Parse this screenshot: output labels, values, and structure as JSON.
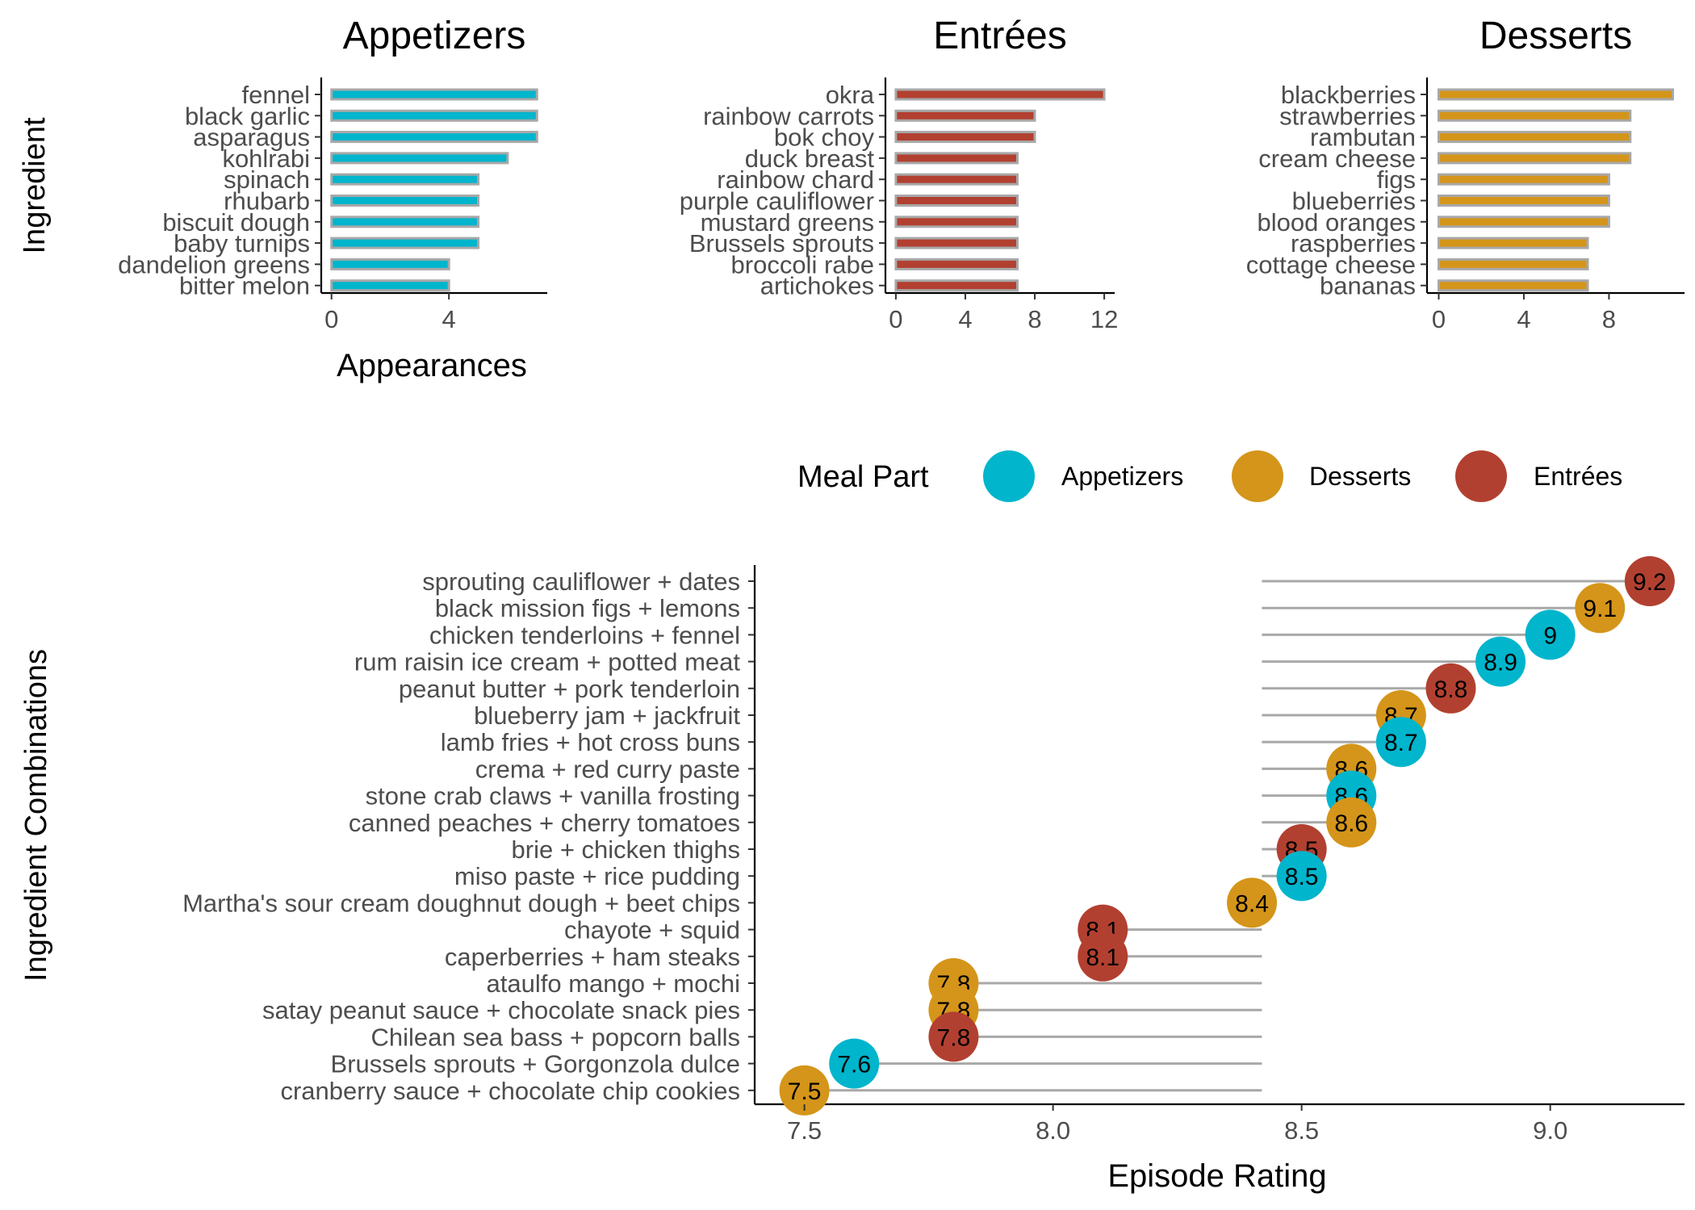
{
  "colors": {
    "Appetizers": "#00B5CC",
    "Desserts": "#D4951A",
    "Entrées": "#B24030",
    "stem": "#A8A8A8",
    "axis": "#000000",
    "tick_label": "#4D4D4D",
    "title": "#000000"
  },
  "top_panels": {
    "ylabel": "Ingredient",
    "xlabel": "Appearances"
  },
  "bottom_panel": {
    "ylabel": "Ingredient Combinations",
    "xlabel": "Episode Rating"
  },
  "legend": {
    "title": "Meal Part",
    "position": "top-right",
    "items": [
      "Appetizers",
      "Desserts",
      "Entrées"
    ]
  },
  "chart_data": [
    {
      "type": "bar",
      "orientation": "horizontal",
      "title": "Appetizers",
      "ylabel": "Ingredient",
      "xlabel": "Appearances",
      "categories": [
        "fennel",
        "black garlic",
        "asparagus",
        "kohlrabi",
        "spinach",
        "rhubarb",
        "biscuit dough",
        "baby turnips",
        "dandelion greens",
        "bitter melon"
      ],
      "values": [
        7,
        7,
        7,
        6,
        5,
        5,
        5,
        5,
        4,
        4
      ],
      "xticks": [
        0,
        4
      ],
      "xlim": [
        -0.35,
        7.35
      ],
      "color": "#00B5CC"
    },
    {
      "type": "bar",
      "orientation": "horizontal",
      "title": "Entrées",
      "categories": [
        "okra",
        "rainbow carrots",
        "bok choy",
        "duck breast",
        "rainbow chard",
        "purple cauliflower",
        "mustard greens",
        "Brussels sprouts",
        "broccoli rabe",
        "artichokes"
      ],
      "values": [
        12,
        8,
        8,
        7,
        7,
        7,
        7,
        7,
        7,
        7
      ],
      "xticks": [
        0,
        4,
        8,
        12
      ],
      "xlim": [
        -0.6,
        12.6
      ],
      "color": "#B24030"
    },
    {
      "type": "bar",
      "orientation": "horizontal",
      "title": "Desserts",
      "categories": [
        "blackberries",
        "strawberries",
        "rambutan",
        "cream cheese",
        "figs",
        "blueberries",
        "blood oranges",
        "raspberries",
        "cottage cheese",
        "bananas"
      ],
      "values": [
        11,
        9,
        9,
        9,
        8,
        8,
        8,
        7,
        7,
        7
      ],
      "xticks": [
        0,
        4,
        8
      ],
      "xlim": [
        -0.55,
        11.55
      ],
      "color": "#D4951A"
    },
    {
      "type": "scatter",
      "subtype": "lollipop",
      "ylabel": "Ingredient Combinations",
      "xlabel": "Episode Rating",
      "xlim": [
        7.4,
        9.27
      ],
      "xticks": [
        7.5,
        8.0,
        8.5,
        9.0
      ],
      "xtick_labels": [
        "7.5",
        "8.0",
        "8.5",
        "9.0"
      ],
      "stem_origin": 8.42,
      "points": [
        {
          "label": "sprouting cauliflower +  dates",
          "rating": 9.2,
          "text": "9.2",
          "meal": "Entrées"
        },
        {
          "label": "black mission figs +  lemons",
          "rating": 9.1,
          "text": "9.1",
          "meal": "Desserts"
        },
        {
          "label": "chicken tenderloins +  fennel",
          "rating": 9.0,
          "text": "9",
          "meal": "Appetizers"
        },
        {
          "label": "rum raisin ice cream +  potted meat",
          "rating": 8.9,
          "text": "8.9",
          "meal": "Appetizers"
        },
        {
          "label": "peanut butter +  pork tenderloin",
          "rating": 8.8,
          "text": "8.8",
          "meal": "Entrées"
        },
        {
          "label": "blueberry jam +  jackfruit",
          "rating": 8.7,
          "text": "8.7",
          "meal": "Desserts"
        },
        {
          "label": "lamb fries +  hot cross buns",
          "rating": 8.7,
          "text": "8.7",
          "meal": "Appetizers"
        },
        {
          "label": "crema +  red curry paste",
          "rating": 8.6,
          "text": "8.6",
          "meal": "Desserts"
        },
        {
          "label": "stone crab claws +  vanilla frosting",
          "rating": 8.6,
          "text": "8.6",
          "meal": "Appetizers"
        },
        {
          "label": "canned peaches +  cherry tomatoes",
          "rating": 8.6,
          "text": "8.6",
          "meal": "Desserts"
        },
        {
          "label": "brie +  chicken thighs",
          "rating": 8.5,
          "text": "8.5",
          "meal": "Entrées"
        },
        {
          "label": "miso paste +  rice pudding",
          "rating": 8.5,
          "text": "8.5",
          "meal": "Appetizers"
        },
        {
          "label": "Martha's sour cream doughnut dough +  beet chips",
          "rating": 8.4,
          "text": "8.4",
          "meal": "Desserts"
        },
        {
          "label": "chayote +  squid",
          "rating": 8.1,
          "text": "8.1",
          "meal": "Entrées"
        },
        {
          "label": "caperberries +  ham steaks",
          "rating": 8.1,
          "text": "8.1",
          "meal": "Entrées"
        },
        {
          "label": "ataulfo mango +  mochi",
          "rating": 7.8,
          "text": "7.8",
          "meal": "Desserts"
        },
        {
          "label": "satay peanut sauce +  chocolate snack pies",
          "rating": 7.8,
          "text": "7.8",
          "meal": "Desserts"
        },
        {
          "label": "Chilean sea bass +  popcorn balls",
          "rating": 7.8,
          "text": "7.8",
          "meal": "Entrées"
        },
        {
          "label": "Brussels sprouts +  Gorgonzola dulce",
          "rating": 7.6,
          "text": "7.6",
          "meal": "Appetizers"
        },
        {
          "label": "cranberry sauce +  chocolate chip cookies",
          "rating": 7.5,
          "text": "7.5",
          "meal": "Desserts"
        }
      ]
    }
  ]
}
